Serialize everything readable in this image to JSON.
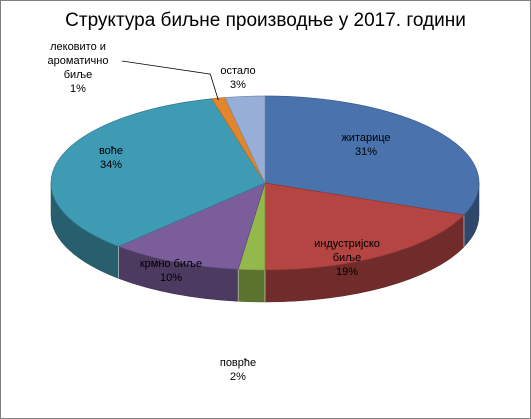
{
  "chart_data": {
    "type": "pie",
    "title": "Структура биљне производње у 2017. години",
    "categories": [
      "житарице",
      "индустријско биље",
      "поврће",
      "крмно биље",
      "воће",
      "лековито и ароматично биље",
      "остало"
    ],
    "values": [
      31,
      19,
      2,
      10,
      34,
      1,
      3
    ],
    "labels": [
      {
        "name_lines": [
          "житарице"
        ],
        "percent": "31%"
      },
      {
        "name_lines": [
          "индустријско",
          "биље"
        ],
        "percent": "19%"
      },
      {
        "name_lines": [
          "поврће"
        ],
        "percent": "2%"
      },
      {
        "name_lines": [
          "крмно биље"
        ],
        "percent": "10%"
      },
      {
        "name_lines": [
          "воће"
        ],
        "percent": "34%"
      },
      {
        "name_lines": [
          "лековито и",
          "ароматично",
          "биље"
        ],
        "percent": "1%"
      },
      {
        "name_lines": [
          "остало"
        ],
        "percent": "3%"
      }
    ],
    "colors": [
      "#4a73ad",
      "#b44543",
      "#94b84c",
      "#7b5d9c",
      "#3f9ab3",
      "#e3852d",
      "#97afd6"
    ],
    "style": "3d-pie",
    "legend": "none"
  }
}
